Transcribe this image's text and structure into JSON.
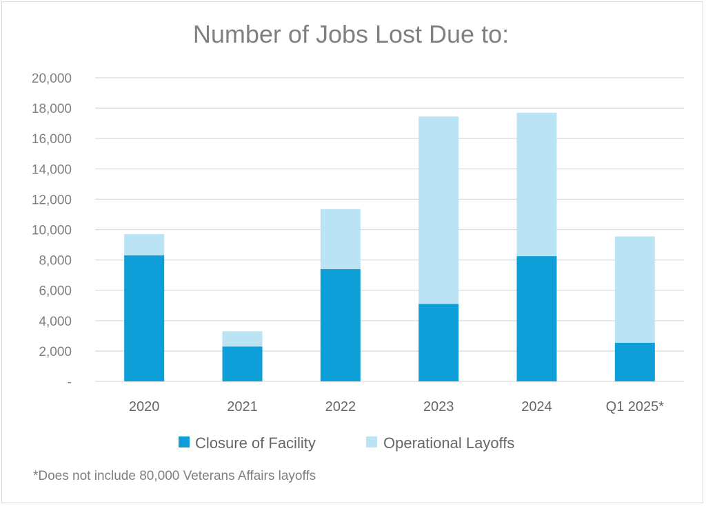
{
  "colors": {
    "closure": "#0f9fd8",
    "operational": "#bae3f4",
    "title": "#808080",
    "grid": "#d9d9d9"
  },
  "chart_data": {
    "type": "bar",
    "stacked": true,
    "title": "Number of Jobs Lost Due to:",
    "xlabel": "",
    "ylabel": "",
    "categories": [
      "2020",
      "2021",
      "2022",
      "2023",
      "2024",
      "Q1 2025*"
    ],
    "series": [
      {
        "name": "Closure of Facility",
        "values": [
          8300,
          2300,
          7400,
          5100,
          8250,
          2550
        ]
      },
      {
        "name": "Operational Layoffs",
        "values": [
          1400,
          1000,
          3950,
          12350,
          9450,
          7000
        ]
      }
    ],
    "ylim": [
      0,
      20000
    ],
    "yticks": [
      0,
      2000,
      4000,
      6000,
      8000,
      10000,
      12000,
      14000,
      16000,
      18000,
      20000
    ],
    "ytick_labels": [
      "-",
      "2,000",
      "4,000",
      "6,000",
      "8,000",
      "10,000",
      "12,000",
      "14,000",
      "16,000",
      "18,000",
      "20,000"
    ],
    "grid": true,
    "legend_position": "bottom",
    "footnote": "*Does not include 80,000 Veterans Affairs layoffs"
  }
}
